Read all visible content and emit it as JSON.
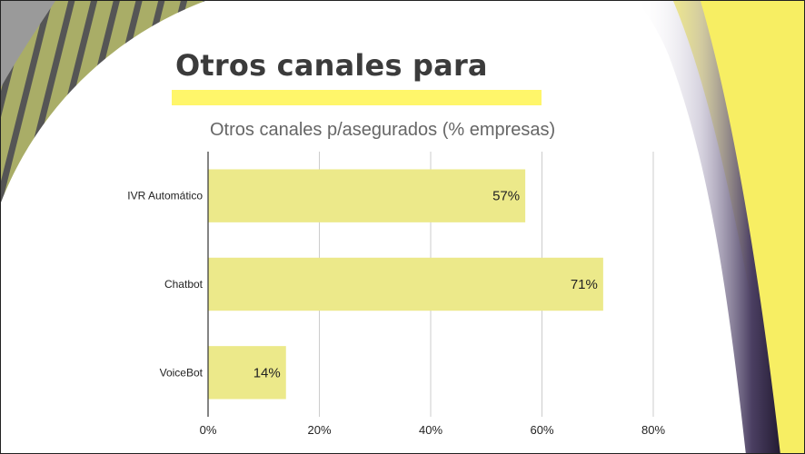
{
  "slide": {
    "title": "Otros canales para",
    "colors": {
      "yellow": "#f7ee63",
      "underline": "#fff66a",
      "bar": "#ece98a",
      "stripe_green": "#a9ad67",
      "stripe_dark": "#555555",
      "fold_dark": "#2c2340"
    }
  },
  "chart_data": {
    "type": "bar",
    "orientation": "horizontal",
    "title": "Otros canales p/asegurados (% empresas)",
    "categories": [
      "IVR Automático",
      "Chatbot",
      "VoiceBot"
    ],
    "values": [
      57,
      71,
      14
    ],
    "data_labels": [
      "57%",
      "71%",
      "14%"
    ],
    "xlim": [
      0,
      80
    ],
    "xticks": [
      0,
      20,
      40,
      60,
      80
    ],
    "xtick_labels": [
      "0%",
      "20%",
      "40%",
      "60%",
      "80%"
    ],
    "xlabel": "",
    "ylabel": "",
    "grid": true,
    "legend": "none",
    "bar_color": "#ece98a"
  }
}
